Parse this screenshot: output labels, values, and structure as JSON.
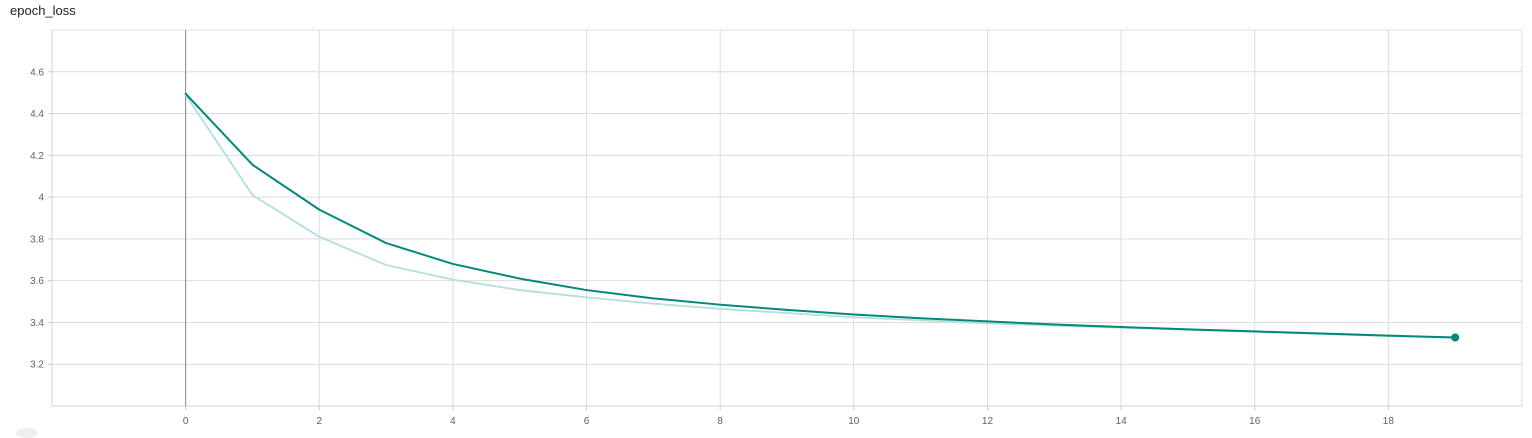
{
  "chart_data": {
    "type": "line",
    "title": "epoch_loss",
    "xlabel": "",
    "ylabel": "",
    "xlim": [
      -2,
      20
    ],
    "ylim": [
      3.0,
      4.8
    ],
    "x_ticks": [
      0,
      2,
      4,
      6,
      8,
      10,
      12,
      14,
      16,
      18
    ],
    "y_ticks": [
      3.2,
      3.4,
      3.6,
      3.8,
      4,
      4.2,
      4.4,
      4.6
    ],
    "y_tick_labels": [
      "3.2",
      "3.4",
      "3.6",
      "3.8",
      "4",
      "4.2",
      "4.4",
      "4.6"
    ],
    "grid": true,
    "series": [
      {
        "role": "raw",
        "color": "#b2dfdb",
        "x": [
          0,
          1,
          2,
          3,
          4,
          5,
          6,
          7,
          8,
          9,
          10,
          11,
          12,
          13,
          14,
          15,
          16,
          17,
          18,
          19
        ],
        "y": [
          4.49,
          4.01,
          3.81,
          3.675,
          3.605,
          3.555,
          3.52,
          3.49,
          3.465,
          3.445,
          3.425,
          3.41,
          3.395,
          3.385,
          3.375,
          3.365,
          3.355,
          3.345,
          3.335,
          3.328
        ]
      },
      {
        "role": "smoothed",
        "color": "#00897b",
        "x": [
          0,
          1,
          2,
          3,
          4,
          5,
          6,
          7,
          8,
          9,
          10,
          11,
          12,
          13,
          14,
          15,
          16,
          17,
          18,
          19
        ],
        "y": [
          4.495,
          4.155,
          3.94,
          3.78,
          3.68,
          3.61,
          3.555,
          3.515,
          3.485,
          3.46,
          3.438,
          3.42,
          3.405,
          3.39,
          3.378,
          3.367,
          3.357,
          3.347,
          3.337,
          3.328
        ]
      }
    ]
  }
}
